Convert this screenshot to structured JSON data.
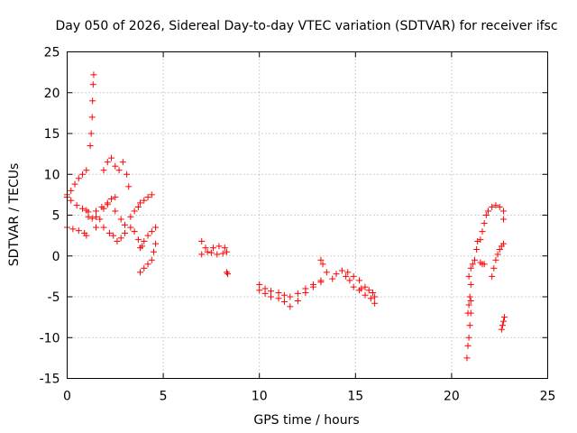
{
  "chart_data": {
    "type": "scatter",
    "title": "Day 050 of 2026, Sidereal Day-to-day VTEC variation (SDTVAR) for receiver ifsc",
    "xlabel": "GPS time / hours",
    "ylabel": "SDTVAR / TECUs",
    "xlim": [
      0,
      25
    ],
    "ylim": [
      -15,
      25
    ],
    "xticks": [
      0,
      5,
      10,
      15,
      20,
      25
    ],
    "yticks": [
      -15,
      -10,
      -5,
      0,
      5,
      10,
      15,
      20,
      25
    ],
    "grid": true,
    "marker": "plus",
    "color": "#ff0000",
    "segments": [
      [
        [
          0.0,
          7.5
        ],
        [
          0.2,
          6.8
        ],
        [
          0.5,
          6.2
        ],
        [
          0.8,
          5.8
        ],
        [
          1.0,
          5.6
        ],
        [
          1.1,
          5.4
        ]
      ],
      [
        [
          0.0,
          7.2
        ],
        [
          0.2,
          8.0
        ],
        [
          0.4,
          8.8
        ],
        [
          0.6,
          9.5
        ],
        [
          0.8,
          10.0
        ],
        [
          1.0,
          10.5
        ]
      ],
      [
        [
          0.0,
          3.5
        ],
        [
          0.3,
          3.3
        ],
        [
          0.6,
          3.1
        ],
        [
          0.9,
          2.8
        ],
        [
          1.0,
          2.5
        ]
      ],
      [
        [
          1.1,
          4.8
        ],
        [
          1.3,
          4.6
        ],
        [
          1.5,
          4.8
        ]
      ],
      [
        [
          1.2,
          13.5
        ],
        [
          1.25,
          15.0
        ],
        [
          1.3,
          17.0
        ],
        [
          1.32,
          19.0
        ],
        [
          1.35,
          21.0
        ],
        [
          1.38,
          22.2
        ]
      ],
      [
        [
          1.5,
          5.5
        ],
        [
          1.8,
          6.0
        ],
        [
          2.1,
          6.5
        ],
        [
          2.3,
          7.0
        ],
        [
          2.5,
          7.2
        ]
      ],
      [
        [
          1.5,
          3.5
        ],
        [
          1.7,
          4.5
        ],
        [
          1.9,
          5.8
        ],
        [
          2.1,
          6.3
        ]
      ],
      [
        [
          1.9,
          10.5
        ],
        [
          2.1,
          11.5
        ],
        [
          2.3,
          12.0
        ],
        [
          2.5,
          11.0
        ],
        [
          2.7,
          10.5
        ],
        [
          2.9,
          11.5
        ],
        [
          3.1,
          10.0
        ],
        [
          3.2,
          8.5
        ]
      ],
      [
        [
          1.9,
          3.5
        ],
        [
          2.2,
          2.8
        ],
        [
          2.4,
          2.5
        ],
        [
          2.6,
          1.8
        ],
        [
          2.8,
          2.2
        ],
        [
          3.0,
          2.8
        ],
        [
          3.3,
          3.5
        ],
        [
          3.5,
          3.0
        ],
        [
          3.7,
          2.0
        ],
        [
          3.9,
          1.2
        ]
      ],
      [
        [
          2.5,
          5.5
        ],
        [
          2.8,
          4.5
        ],
        [
          3.0,
          3.8
        ],
        [
          3.3,
          4.8
        ],
        [
          3.5,
          5.5
        ],
        [
          3.7,
          6.0
        ],
        [
          3.8,
          6.5
        ],
        [
          4.0,
          6.8
        ],
        [
          4.2,
          7.2
        ],
        [
          4.4,
          7.5
        ]
      ],
      [
        [
          3.8,
          1.0
        ],
        [
          4.0,
          1.8
        ],
        [
          4.2,
          2.5
        ],
        [
          4.4,
          3.0
        ],
        [
          4.6,
          3.5
        ]
      ],
      [
        [
          3.8,
          -2.0
        ],
        [
          4.0,
          -1.5
        ],
        [
          4.2,
          -1.0
        ],
        [
          4.4,
          -0.5
        ],
        [
          4.5,
          0.5
        ],
        [
          4.6,
          1.5
        ]
      ],
      [
        [
          7.0,
          1.8
        ],
        [
          7.2,
          1.0
        ],
        [
          7.5,
          0.4
        ],
        [
          7.8,
          0.2
        ],
        [
          8.1,
          0.3
        ],
        [
          8.3,
          0.5
        ]
      ],
      [
        [
          7.0,
          0.2
        ],
        [
          7.3,
          0.5
        ],
        [
          7.6,
          1.0
        ],
        [
          7.9,
          1.2
        ],
        [
          8.2,
          1.0
        ]
      ],
      [
        [
          8.3,
          -2.0
        ],
        [
          8.35,
          -2.2
        ]
      ],
      [
        [
          10.0,
          -3.5
        ],
        [
          10.3,
          -4.0
        ],
        [
          10.6,
          -4.3
        ],
        [
          11.0,
          -4.5
        ],
        [
          11.3,
          -4.8
        ],
        [
          11.6,
          -5.0
        ],
        [
          12.0,
          -4.6
        ],
        [
          12.4,
          -4.0
        ],
        [
          12.8,
          -3.5
        ],
        [
          13.2,
          -3.0
        ]
      ],
      [
        [
          10.0,
          -4.2
        ],
        [
          10.3,
          -4.6
        ],
        [
          10.6,
          -5.0
        ],
        [
          11.0,
          -5.2
        ],
        [
          11.3,
          -5.6
        ],
        [
          11.6,
          -6.2
        ],
        [
          12.0,
          -5.5
        ],
        [
          12.4,
          -4.5
        ],
        [
          12.8,
          -3.8
        ],
        [
          13.2,
          -3.2
        ]
      ],
      [
        [
          13.2,
          -0.5
        ],
        [
          13.3,
          -1.0
        ],
        [
          13.5,
          -2.0
        ],
        [
          13.8,
          -2.8
        ],
        [
          14.0,
          -2.2
        ],
        [
          14.3,
          -1.8
        ],
        [
          14.6,
          -2.0
        ],
        [
          14.9,
          -2.5
        ],
        [
          15.2,
          -3.0
        ]
      ],
      [
        [
          14.5,
          -2.5
        ],
        [
          14.7,
          -3.0
        ],
        [
          14.9,
          -3.8
        ],
        [
          15.2,
          -4.2
        ],
        [
          15.5,
          -4.8
        ],
        [
          15.8,
          -5.2
        ],
        [
          16.0,
          -5.8
        ]
      ],
      [
        [
          15.3,
          -4.0
        ],
        [
          15.5,
          -3.8
        ],
        [
          15.7,
          -4.2
        ],
        [
          15.9,
          -4.5
        ],
        [
          16.0,
          -5.0
        ]
      ],
      [
        [
          20.8,
          -12.5
        ],
        [
          20.85,
          -11.0
        ],
        [
          20.9,
          -10.0
        ],
        [
          20.95,
          -8.5
        ],
        [
          21.0,
          -7.0
        ],
        [
          21.0,
          -5.5
        ]
      ],
      [
        [
          20.85,
          -7.0
        ],
        [
          20.9,
          -6.0
        ],
        [
          20.95,
          -5.0
        ],
        [
          21.0,
          -3.5
        ]
      ],
      [
        [
          20.9,
          -2.5
        ],
        [
          21.0,
          -1.5
        ],
        [
          21.1,
          -1.0
        ],
        [
          21.2,
          -0.5
        ]
      ],
      [
        [
          21.3,
          0.8
        ],
        [
          21.35,
          1.8
        ]
      ],
      [
        [
          21.5,
          -0.8
        ],
        [
          21.6,
          -1.0
        ],
        [
          21.7,
          -1.0
        ]
      ],
      [
        [
          21.5,
          2.0
        ],
        [
          21.6,
          3.0
        ],
        [
          21.7,
          4.0
        ],
        [
          21.8,
          5.0
        ],
        [
          21.9,
          5.5
        ]
      ],
      [
        [
          21.9,
          5.5
        ],
        [
          22.1,
          6.0
        ],
        [
          22.3,
          6.2
        ],
        [
          22.5,
          6.0
        ],
        [
          22.7,
          5.5
        ],
        [
          22.7,
          4.5
        ]
      ],
      [
        [
          22.1,
          -2.5
        ],
        [
          22.2,
          -1.5
        ],
        [
          22.3,
          -0.5
        ],
        [
          22.4,
          0.2
        ],
        [
          22.5,
          0.8
        ],
        [
          22.6,
          1.2
        ],
        [
          22.7,
          1.5
        ]
      ],
      [
        [
          22.6,
          -9.0
        ],
        [
          22.65,
          -8.5
        ],
        [
          22.7,
          -8.0
        ],
        [
          22.75,
          -7.5
        ]
      ]
    ]
  }
}
